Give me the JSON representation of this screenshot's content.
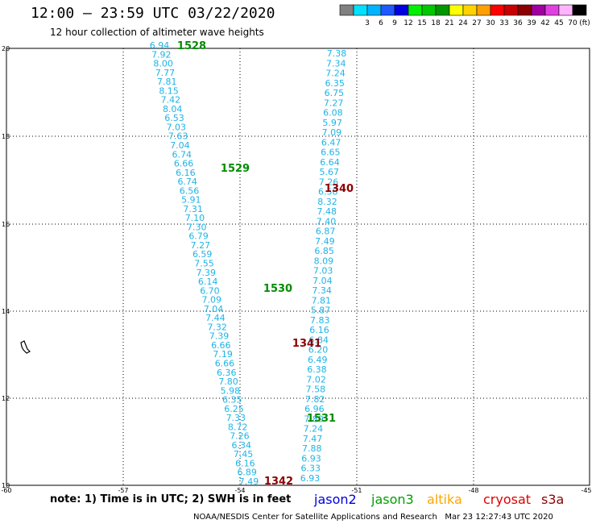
{
  "header": {
    "title": "12:00 — 23:59 UTC 03/22/2020",
    "subtitle": "12 hour collection of altimeter wave heights"
  },
  "legend": {
    "unit_label": "(ft)",
    "bins": [
      {
        "label": "",
        "color": "#808080"
      },
      {
        "label": "3",
        "color": "#00e0ff"
      },
      {
        "label": "6",
        "color": "#00b4ff"
      },
      {
        "label": "9",
        "color": "#1e5aff"
      },
      {
        "label": "12",
        "color": "#0000e0"
      },
      {
        "label": "15",
        "color": "#00f000"
      },
      {
        "label": "18",
        "color": "#00c800"
      },
      {
        "label": "21",
        "color": "#009600"
      },
      {
        "label": "24",
        "color": "#ffff00"
      },
      {
        "label": "27",
        "color": "#ffd200"
      },
      {
        "label": "30",
        "color": "#ffa000"
      },
      {
        "label": "33",
        "color": "#ff0000"
      },
      {
        "label": "36",
        "color": "#c80000"
      },
      {
        "label": "39",
        "color": "#8c0000"
      },
      {
        "label": "42",
        "color": "#a000a0"
      },
      {
        "label": "45",
        "color": "#e040e0"
      },
      {
        "label": "70",
        "color": "#ffb4ff"
      },
      {
        "label": "",
        "color": "#000000"
      }
    ]
  },
  "map": {
    "lon_ticks": [
      "-60",
      "-57",
      "-54",
      "-51",
      "-48",
      "-45"
    ],
    "lat_ticks": [
      "10",
      "12",
      "14",
      "16",
      "18",
      "20"
    ],
    "value_color": "#1eb4e6",
    "track_a": [
      "6.94",
      "7.92",
      "8.00",
      "7.77",
      "7.81",
      "8.15",
      "7.42",
      "8.04",
      "6.53",
      "7.03",
      "7.63",
      "7.04",
      "6.74",
      "6.66",
      "6.16",
      "6.74",
      "6.56",
      "5.91",
      "7.31",
      "7.10",
      "7.30",
      "6.79",
      "7.27",
      "6.59",
      "7.55",
      "7.39",
      "6.14",
      "6.70",
      "7.09",
      "7.04",
      "7.44",
      "7.32",
      "7.39",
      "6.66",
      "7.19",
      "6.66",
      "6.36",
      "7.80",
      "5.98",
      "6.35",
      "6.25",
      "7.33",
      "8.72",
      "7.26",
      "6.34",
      "7.45",
      "6.16",
      "6.89",
      "7.49"
    ],
    "track_b": [
      "7.38",
      "7.34",
      "7.24",
      "6.35",
      "6.75",
      "7.27",
      "6.08",
      "5.97",
      "7.09",
      "6.47",
      "6.65",
      "6.64",
      "5.67",
      "7.26",
      "6.58",
      "8.32",
      "7.48",
      "7.40",
      "6.87",
      "7.49",
      "6.85",
      "8.09",
      "7.03",
      "7.04",
      "7.34",
      "7.81",
      "5.87",
      "7.83",
      "6.16",
      "6.84",
      "6.20",
      "6.49",
      "6.38",
      "7.02",
      "7.58",
      "7.82",
      "6.96",
      "7.89",
      "7.24",
      "7.47",
      "7.88",
      "6.93",
      "6.33",
      "6.93"
    ],
    "time_labels": [
      {
        "text": "1528",
        "color": "#008c00"
      },
      {
        "text": "1529",
        "color": "#008c00"
      },
      {
        "text": "1530",
        "color": "#008c00"
      },
      {
        "text": "1531",
        "color": "#008c00"
      },
      {
        "text": "1340",
        "color": "#8c0000"
      },
      {
        "text": "1341",
        "color": "#8c0000"
      },
      {
        "text": "1342",
        "color": "#8c0000"
      }
    ]
  },
  "footer": {
    "note": "note: 1) Time is in UTC; 2) SWH is in feet",
    "satellites": [
      {
        "name": "jason2",
        "color": "#0000dc"
      },
      {
        "name": "jason3",
        "color": "#00a000"
      },
      {
        "name": "altika",
        "color": "#ffa500"
      },
      {
        "name": "cryosat",
        "color": "#dc0000"
      },
      {
        "name": "s3a",
        "color": "#8c0000"
      }
    ],
    "credit": "NOAA/NESDIS Center for Satellite Applications and Research   Mar 23 12:27:43 UTC 2020"
  }
}
